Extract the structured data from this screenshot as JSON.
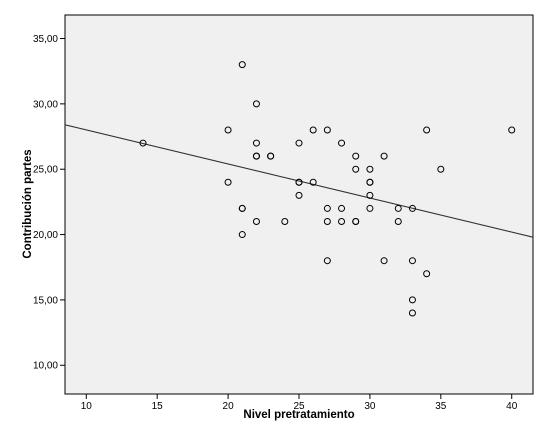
{
  "chart_data": {
    "type": "scatter",
    "xlabel": "Nivel pretratamiento",
    "ylabel": "Contribución partes",
    "xlim": [
      8.5,
      41.5
    ],
    "ylim": [
      7.8,
      36.8
    ],
    "xticks": [
      "10",
      "15",
      "20",
      "25",
      "30",
      "35",
      "40"
    ],
    "yticks": [
      "10,00",
      "15,00",
      "20,00",
      "25,00",
      "30,00",
      "35,00"
    ],
    "grid": false,
    "plot_background": "#f0f0f0",
    "marker_color": "#000000",
    "line_color": "#333333",
    "fit_line": {
      "x": [
        8.5,
        41.5
      ],
      "y": [
        28.4,
        19.8
      ]
    },
    "points": [
      {
        "x": 14,
        "y": 27
      },
      {
        "x": 20,
        "y": 28
      },
      {
        "x": 20,
        "y": 24
      },
      {
        "x": 21,
        "y": 33
      },
      {
        "x": 21,
        "y": 22
      },
      {
        "x": 21,
        "y": 22
      },
      {
        "x": 21,
        "y": 20
      },
      {
        "x": 22,
        "y": 30
      },
      {
        "x": 22,
        "y": 27
      },
      {
        "x": 22,
        "y": 26
      },
      {
        "x": 22,
        "y": 26
      },
      {
        "x": 22,
        "y": 21
      },
      {
        "x": 23,
        "y": 26
      },
      {
        "x": 23,
        "y": 26
      },
      {
        "x": 24,
        "y": 21
      },
      {
        "x": 25,
        "y": 27
      },
      {
        "x": 25,
        "y": 24
      },
      {
        "x": 25,
        "y": 24
      },
      {
        "x": 25,
        "y": 23
      },
      {
        "x": 26,
        "y": 28
      },
      {
        "x": 26,
        "y": 24
      },
      {
        "x": 27,
        "y": 28
      },
      {
        "x": 27,
        "y": 22
      },
      {
        "x": 27,
        "y": 21
      },
      {
        "x": 27,
        "y": 18
      },
      {
        "x": 28,
        "y": 27
      },
      {
        "x": 28,
        "y": 22
      },
      {
        "x": 28,
        "y": 21
      },
      {
        "x": 29,
        "y": 26
      },
      {
        "x": 29,
        "y": 25
      },
      {
        "x": 29,
        "y": 21
      },
      {
        "x": 29,
        "y": 21
      },
      {
        "x": 30,
        "y": 25
      },
      {
        "x": 30,
        "y": 24
      },
      {
        "x": 30,
        "y": 24
      },
      {
        "x": 30,
        "y": 23
      },
      {
        "x": 30,
        "y": 22
      },
      {
        "x": 31,
        "y": 26
      },
      {
        "x": 31,
        "y": 18
      },
      {
        "x": 32,
        "y": 22
      },
      {
        "x": 32,
        "y": 21
      },
      {
        "x": 33,
        "y": 22
      },
      {
        "x": 33,
        "y": 18
      },
      {
        "x": 33,
        "y": 15
      },
      {
        "x": 33,
        "y": 14
      },
      {
        "x": 34,
        "y": 28
      },
      {
        "x": 34,
        "y": 17
      },
      {
        "x": 35,
        "y": 25
      },
      {
        "x": 40,
        "y": 28
      }
    ]
  }
}
